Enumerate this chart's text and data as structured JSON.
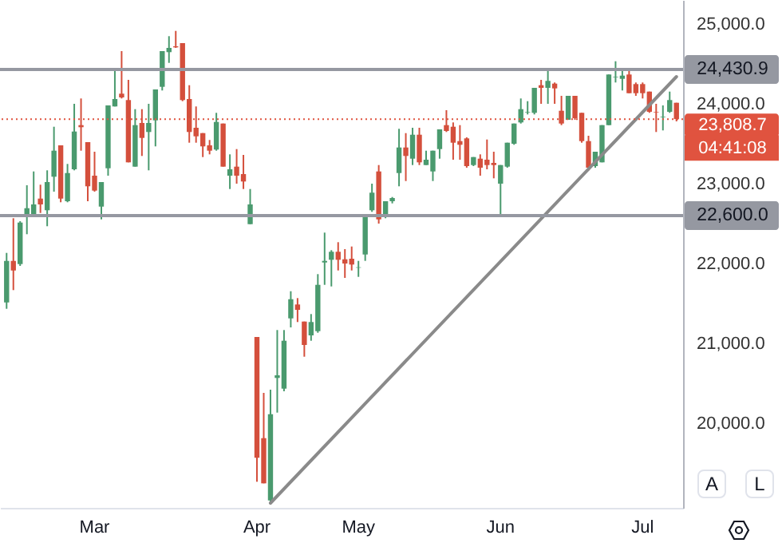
{
  "chart_data": {
    "type": "candlestick",
    "categories": [
      null,
      null,
      null,
      null,
      null,
      null,
      null,
      null,
      null,
      null,
      null,
      null,
      null,
      "Mar",
      null,
      null,
      null,
      null,
      null,
      null,
      null,
      null,
      null,
      null,
      null,
      null,
      null,
      null,
      null,
      null,
      null,
      null,
      null,
      null,
      null,
      null,
      null,
      "Apr",
      null,
      null,
      null,
      null,
      null,
      null,
      null,
      null,
      null,
      null,
      null,
      null,
      null,
      null,
      "May",
      null,
      null,
      null,
      null,
      null,
      null,
      null,
      null,
      null,
      null,
      null,
      null,
      null,
      null,
      null,
      null,
      null,
      null,
      null,
      null,
      "Jun",
      null,
      null,
      null,
      null,
      null,
      null,
      null,
      null,
      null,
      null,
      null,
      null,
      null,
      null,
      null,
      null,
      null,
      null,
      null,
      null,
      "Jul",
      null,
      null,
      null,
      null,
      null
    ],
    "ohlc": [
      [
        21513,
        22133,
        21433,
        22033
      ],
      [
        22033,
        22567,
        21667,
        21913
      ],
      [
        21993,
        22530,
        21970,
        22513
      ],
      [
        22620,
        22980,
        22367,
        22693
      ],
      [
        22607,
        23153,
        22607,
        22740
      ],
      [
        22813,
        22987,
        22633,
        22740
      ],
      [
        22667,
        23167,
        22467,
        23020
      ],
      [
        23087,
        23713,
        22900,
        23413
      ],
      [
        23480,
        23480,
        22767,
        22813
      ],
      [
        22780,
        23247,
        22767,
        23133
      ],
      [
        23180,
        24000,
        23167,
        23653
      ],
      [
        23733,
        24067,
        23413,
        23707
      ],
      [
        23520,
        23520,
        22780,
        22967
      ],
      [
        23100,
        23400,
        22900,
        22913
      ],
      [
        22713,
        23020,
        22553,
        23020
      ],
      [
        23193,
        23980,
        23100,
        23980
      ],
      [
        23967,
        24433,
        23967,
        24060
      ],
      [
        24127,
        24660,
        24067,
        24080
      ],
      [
        24047,
        24300,
        23267,
        23267
      ],
      [
        23213,
        23933,
        23213,
        23733
      ],
      [
        23760,
        23933,
        23347,
        23573
      ],
      [
        23647,
        24000,
        23167,
        23760
      ],
      [
        23793,
        24180,
        23467,
        24180
      ],
      [
        24213,
        24660,
        24167,
        24660
      ],
      [
        24647,
        24847,
        24513,
        24700
      ],
      [
        24720,
        24913,
        24700,
        24707
      ],
      [
        24760,
        24760,
        24033,
        24047
      ],
      [
        24060,
        24233,
        23513,
        23647
      ],
      [
        23700,
        23967,
        23513,
        23593
      ],
      [
        23633,
        23633,
        23333,
        23467
      ],
      [
        23480,
        23547,
        23367,
        23413
      ],
      [
        23427,
        23887,
        23413,
        23773
      ],
      [
        23753,
        23753,
        23213,
        23213
      ],
      [
        23100,
        23367,
        22933,
        23180
      ],
      [
        23213,
        23433,
        23000,
        23100
      ],
      [
        23120,
        23360,
        22933,
        23027
      ],
      [
        22493,
        22933,
        22493,
        22740
      ],
      [
        21080,
        21080,
        19267,
        19567
      ],
      [
        19813,
        20380,
        19247,
        19247
      ],
      [
        19033,
        20420,
        19000,
        20113
      ],
      [
        20567,
        21167,
        20133,
        20600
      ],
      [
        20433,
        21167,
        20400,
        21033
      ],
      [
        21313,
        21653,
        21200,
        21553
      ],
      [
        21487,
        21567,
        21267,
        21420
      ],
      [
        21273,
        21273,
        20833,
        20980
      ],
      [
        21100,
        21367,
        21033,
        21267
      ],
      [
        21153,
        21867,
        21133,
        21733
      ],
      [
        22013,
        22387,
        21733,
        22033
      ],
      [
        22047,
        22167,
        21713,
        22147
      ],
      [
        22147,
        22267,
        21913,
        22047
      ],
      [
        22053,
        22180,
        21820,
        22000
      ],
      [
        22060,
        22213,
        21913,
        21987
      ],
      [
        21947,
        22033,
        21833,
        21953
      ],
      [
        22113,
        22620,
        22033,
        22620
      ],
      [
        22667,
        23000,
        22647,
        22887
      ],
      [
        23153,
        23233,
        22500,
        22553
      ],
      [
        22613,
        22780,
        22567,
        22780
      ],
      [
        22780,
        22833,
        22753,
        22820
      ],
      [
        23133,
        23687,
        22967,
        23453
      ],
      [
        23453,
        23633,
        23033,
        23347
      ],
      [
        23313,
        23700,
        23233,
        23613
      ],
      [
        23613,
        23700,
        23233,
        23267
      ],
      [
        23233,
        23413,
        23233,
        23300
      ],
      [
        23153,
        23413,
        23033,
        23413
      ],
      [
        23433,
        23680,
        23313,
        23680
      ],
      [
        23733,
        23920,
        23647,
        23660
      ],
      [
        23713,
        23767,
        23300,
        23513
      ],
      [
        23533,
        23733,
        23300,
        23487
      ],
      [
        23567,
        23580,
        23200,
        23220
      ],
      [
        23233,
        23333,
        23220,
        23333
      ],
      [
        23313,
        23367,
        23100,
        23200
      ],
      [
        23300,
        23553,
        23180,
        23233
      ],
      [
        23260,
        23400,
        23067,
        23233
      ],
      [
        23000,
        23233,
        22600,
        23233
      ],
      [
        23213,
        23513,
        23200,
        23513
      ],
      [
        23500,
        23753,
        23487,
        23753
      ],
      [
        23767,
        24067,
        23753,
        23933
      ],
      [
        23893,
        24033,
        23867,
        23900
      ],
      [
        23887,
        24200,
        23867,
        24200
      ],
      [
        24233,
        24300,
        24000,
        24200
      ],
      [
        24200,
        24433,
        24000,
        24287
      ],
      [
        24253,
        24267,
        24000,
        24193
      ],
      [
        23913,
        24100,
        23733,
        23753
      ],
      [
        23800,
        24100,
        23800,
        24100
      ],
      [
        24100,
        24100,
        23800,
        23820
      ],
      [
        23887,
        23887,
        23513,
        23533
      ],
      [
        23533,
        23600,
        23167,
        23200
      ],
      [
        23220,
        23400,
        23200,
        23400
      ],
      [
        23267,
        23733,
        23267,
        23733
      ],
      [
        23733,
        24367,
        23733,
        24367
      ],
      [
        24333,
        24533,
        24267,
        24340
      ],
      [
        24313,
        24433,
        24167,
        24353
      ],
      [
        24367,
        24433,
        24133,
        24133
      ],
      [
        24247,
        24267,
        24100,
        24133
      ],
      [
        24247,
        24267,
        24067,
        24133
      ],
      [
        24153,
        24153,
        23887,
        23900
      ],
      [
        23900,
        24000,
        23647,
        23893
      ],
      [
        23833,
        23980,
        23667,
        23840
      ],
      [
        23900,
        24153,
        23887,
        24047
      ],
      [
        24013,
        24013,
        23780,
        23808.7
      ]
    ],
    "colors": [
      "#4a9a6e",
      "#d44f3c",
      "#4a9a6e",
      "#4a9a6e",
      "#4a9a6e",
      "#d44f3c",
      "#4a9a6e",
      "#4a9a6e",
      "#d44f3c",
      "#4a9a6e",
      "#4a9a6e",
      "#d44f3c",
      "#d44f3c",
      "#d44f3c",
      "#4a9a6e",
      "#4a9a6e",
      "#4a9a6e",
      "#d44f3c",
      "#d44f3c",
      "#4a9a6e",
      "#d44f3c",
      "#4a9a6e",
      "#4a9a6e",
      "#4a9a6e",
      "#4a9a6e",
      "#d44f3c",
      "#d44f3c",
      "#d44f3c",
      "#d44f3c",
      "#d44f3c",
      "#d44f3c",
      "#4a9a6e",
      "#d44f3c",
      "#4a9a6e",
      "#d44f3c",
      "#d44f3c",
      "#4a9a6e",
      "#d44f3c",
      "#d44f3c",
      "#4a9a6e",
      "#4a9a6e",
      "#4a9a6e",
      "#4a9a6e",
      "#d44f3c",
      "#d44f3c",
      "#4a9a6e",
      "#4a9a6e",
      "#4a9a6e",
      "#4a9a6e",
      "#d44f3c",
      "#d44f3c",
      "#d44f3c",
      "#4a9a6e",
      "#4a9a6e",
      "#4a9a6e",
      "#d44f3c",
      "#4a9a6e",
      "#4a9a6e",
      "#4a9a6e",
      "#d44f3c",
      "#4a9a6e",
      "#d44f3c",
      "#4a9a6e",
      "#4a9a6e",
      "#4a9a6e",
      "#d44f3c",
      "#d44f3c",
      "#d44f3c",
      "#d44f3c",
      "#4a9a6e",
      "#d44f3c",
      "#d44f3c",
      "#d44f3c",
      "#4a9a6e",
      "#4a9a6e",
      "#4a9a6e",
      "#4a9a6e",
      "#4a9a6e",
      "#4a9a6e",
      "#d44f3c",
      "#4a9a6e",
      "#d44f3c",
      "#d44f3c",
      "#4a9a6e",
      "#d44f3c",
      "#d44f3c",
      "#d44f3c",
      "#4a9a6e",
      "#4a9a6e",
      "#4a9a6e",
      "#4a9a6e",
      "#4a9a6e",
      "#d44f3c",
      "#d44f3c",
      "#d44f3c",
      "#d44f3c",
      "#d44f3c",
      "#4a9a6e",
      "#4a9a6e",
      "#d44f3c"
    ],
    "series": [
      {
        "type": "line",
        "color": "#8a8a8a",
        "values": [
          null,
          null,
          null,
          null,
          null,
          null,
          null,
          null,
          null,
          null,
          null,
          null,
          null,
          null,
          null,
          null,
          null,
          null,
          null,
          null,
          null,
          null,
          null,
          null,
          null,
          null,
          null,
          null,
          null,
          null,
          null,
          null,
          null,
          null,
          null,
          null,
          null,
          null,
          null,
          19000,
          null,
          null,
          null,
          null,
          null,
          null,
          null,
          null,
          null,
          null,
          null,
          null,
          null,
          null,
          null,
          null,
          null,
          null,
          null,
          null,
          null,
          null,
          null,
          null,
          null,
          null,
          null,
          null,
          null,
          null,
          null,
          null,
          null,
          null,
          null,
          null,
          null,
          null,
          null,
          null,
          null,
          null,
          null,
          null,
          null,
          null,
          null,
          null,
          null,
          null,
          null,
          null,
          null,
          null,
          null,
          null,
          null,
          null,
          null,
          24340
        ]
      }
    ],
    "ylim": [
      18940,
      25300
    ],
    "yticks": [
      {
        "value": 20000,
        "label": "20,000.0"
      },
      {
        "value": 21000,
        "label": "21,000.0"
      },
      {
        "value": 22000,
        "label": "22,000.0"
      },
      {
        "value": 23000,
        "label": "23,000.0"
      },
      {
        "value": 24000,
        "label": "24,000.0"
      },
      {
        "value": 25000,
        "label": "25,000.0"
      }
    ],
    "ref_lines": [
      {
        "axis": "y",
        "value": 24430.9,
        "label": "24,430.9",
        "color": "#9598a1",
        "line_style": "solid"
      },
      {
        "axis": "y",
        "value": 22600,
        "label": "22,600.0",
        "color": "#9598a1",
        "line_style": "solid"
      },
      {
        "axis": "y",
        "value": 23808.7,
        "label": "23,808.7",
        "color": "#e0533f",
        "line_style": "dotted"
      }
    ],
    "annotations": [
      "04:41:08",
      "A",
      "L"
    ]
  }
}
